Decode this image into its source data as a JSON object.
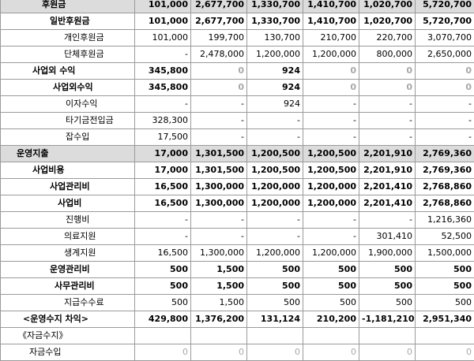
{
  "rows": [
    {
      "label": "후원금",
      "indent": 52,
      "bold": true,
      "shade": true,
      "values": [
        "101,000",
        "2,677,700",
        "1,330,700",
        "1,410,700",
        "1,020,700",
        "5,720,700"
      ]
    },
    {
      "label": "일반후원금",
      "indent": 62,
      "bold": true,
      "shade": false,
      "values": [
        "101,000",
        "2,677,700",
        "1,330,700",
        "1,410,700",
        "1,020,700",
        "5,720,700"
      ]
    },
    {
      "label": "개인후원금",
      "indent": 80,
      "bold": false,
      "shade": false,
      "values": [
        "101,000",
        "199,700",
        "130,700",
        "210,700",
        "220,700",
        "3,070,700"
      ]
    },
    {
      "label": "단체후원금",
      "indent": 80,
      "bold": false,
      "shade": false,
      "values": [
        "-",
        "2,478,000",
        "1,200,000",
        "1,200,000",
        "800,000",
        "2,650,000"
      ]
    },
    {
      "label": "사업외 수익",
      "indent": 40,
      "bold": true,
      "shade": false,
      "values": [
        "345,800",
        "0",
        "924",
        "0",
        "0",
        "0"
      ]
    },
    {
      "label": "사업외수익",
      "indent": 66,
      "bold": true,
      "shade": false,
      "values": [
        "345,800",
        "0",
        "924",
        "0",
        "0",
        "0"
      ]
    },
    {
      "label": "이자수익",
      "indent": 82,
      "bold": false,
      "shade": false,
      "values": [
        "-",
        "-",
        "924",
        "-",
        "-",
        "-"
      ]
    },
    {
      "label": "타기금전입금",
      "indent": 82,
      "bold": false,
      "shade": false,
      "values": [
        "328,300",
        "-",
        "-",
        "-",
        "-",
        "-"
      ]
    },
    {
      "label": "잡수입",
      "indent": 82,
      "bold": false,
      "shade": false,
      "values": [
        "17,500",
        "-",
        "-",
        "-",
        "-",
        "-"
      ]
    },
    {
      "label": "운영지출",
      "indent": 20,
      "bold": true,
      "shade": true,
      "values": [
        "17,000",
        "1,301,500",
        "1,200,500",
        "1,200,500",
        "2,201,910",
        "2,769,360"
      ]
    },
    {
      "label": "사업비용",
      "indent": 40,
      "bold": true,
      "shade": false,
      "values": [
        "17,000",
        "1,301,500",
        "1,200,500",
        "1,200,500",
        "2,201,910",
        "2,769,360"
      ]
    },
    {
      "label": "사업관리비",
      "indent": 62,
      "bold": true,
      "shade": false,
      "values": [
        "16,500",
        "1,300,000",
        "1,200,000",
        "1,200,000",
        "2,201,410",
        "2,768,860"
      ]
    },
    {
      "label": "사업비",
      "indent": 72,
      "bold": true,
      "shade": false,
      "values": [
        "16,500",
        "1,300,000",
        "1,200,000",
        "1,200,000",
        "2,201,410",
        "2,768,860"
      ]
    },
    {
      "label": "진행비",
      "indent": 82,
      "bold": false,
      "shade": false,
      "values": [
        "-",
        "-",
        "-",
        "-",
        "-",
        "1,216,360"
      ]
    },
    {
      "label": "의료지원",
      "indent": 80,
      "bold": false,
      "shade": false,
      "values": [
        "-",
        "-",
        "-",
        "-",
        "301,410",
        "52,500"
      ]
    },
    {
      "label": "생계지원",
      "indent": 80,
      "bold": false,
      "shade": false,
      "values": [
        "16,500",
        "1,300,000",
        "1,200,000",
        "1,200,000",
        "1,900,000",
        "1,500,000"
      ]
    },
    {
      "label": "운영관리비",
      "indent": 62,
      "bold": true,
      "shade": false,
      "values": [
        "500",
        "1,500",
        "500",
        "500",
        "500",
        "500"
      ]
    },
    {
      "label": "사무관리비",
      "indent": 68,
      "bold": true,
      "shade": false,
      "values": [
        "500",
        "1,500",
        "500",
        "500",
        "500",
        "500"
      ]
    },
    {
      "label": "지급수수료",
      "indent": 80,
      "bold": false,
      "shade": false,
      "values": [
        "500",
        "1,500",
        "500",
        "500",
        "500",
        "500"
      ]
    },
    {
      "label": "<운영수지 차익>",
      "indent": 28,
      "bold": true,
      "shade": false,
      "values": [
        "429,800",
        "1,376,200",
        "131,124",
        "210,200",
        "-1,181,210",
        "2,951,340"
      ]
    },
    {
      "label": "《자금수지》",
      "indent": 22,
      "bold": false,
      "shade": false,
      "values": [
        "",
        "",
        "",
        "",
        "",
        ""
      ]
    },
    {
      "label": "자금수입",
      "indent": 36,
      "bold": false,
      "shade": false,
      "values": [
        "0",
        "0",
        "0",
        "0",
        "0",
        "0"
      ]
    }
  ]
}
